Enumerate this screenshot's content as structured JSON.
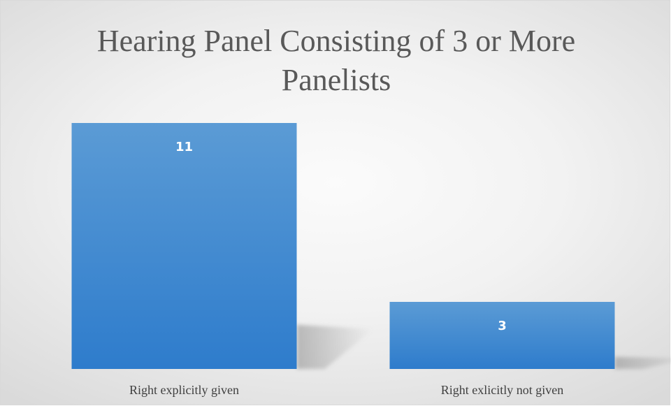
{
  "chart_data": {
    "type": "bar",
    "title": "Hearing Panel Consisting of 3 or More Panelists",
    "categories": [
      "Right explicitly given",
      "Right exlicitly not given"
    ],
    "values": [
      11,
      3
    ],
    "xlabel": "",
    "ylabel": "",
    "ylim": [
      0,
      12
    ],
    "grid": false,
    "legend": "none",
    "data_labels": true,
    "colors": {
      "bar_top": "#5b9bd5",
      "bar_bottom": "#2e7ccc",
      "data_label": "#ffffff",
      "tick_label": "#404040",
      "title": "#595959"
    }
  }
}
